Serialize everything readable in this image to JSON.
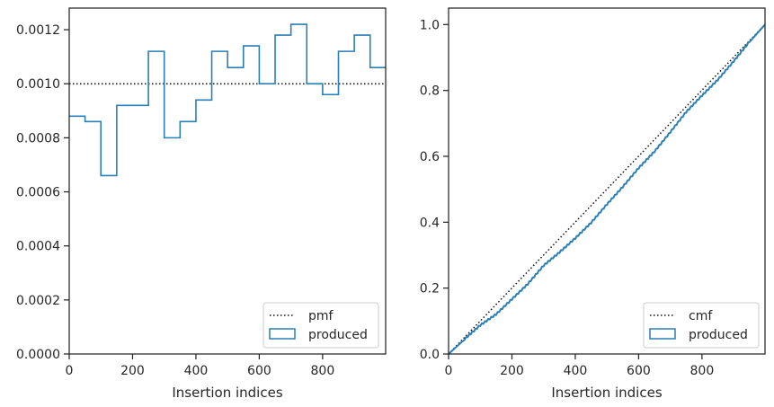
{
  "colors": {
    "produced": "#2a7fb5",
    "reference": "#111111",
    "spine": "#262626",
    "legend_border": "#cccccc"
  },
  "chart_data": [
    {
      "type": "step",
      "xlabel": "Insertion indices",
      "ylabel": "",
      "xlim": [
        0,
        999
      ],
      "ylim": [
        0,
        0.00128
      ],
      "x_ticks": [
        0,
        200,
        400,
        600,
        800
      ],
      "x_tick_labels": [
        "0",
        "200",
        "400",
        "600",
        "800"
      ],
      "y_ticks": [
        0,
        0.0002,
        0.0004,
        0.0006,
        0.0008,
        0.001,
        0.0012
      ],
      "y_tick_labels": [
        "0.0000",
        "0.0002",
        "0.0004",
        "0.0006",
        "0.0008",
        "0.0010",
        "0.0012"
      ],
      "grid": false,
      "legend_position": "lower-right",
      "legend": [
        {
          "label": "pmf",
          "style": "dotted"
        },
        {
          "label": "produced",
          "style": "box"
        }
      ],
      "reference_line": {
        "label": "pmf",
        "y": 0.001
      },
      "series": [
        {
          "name": "produced",
          "bin_edges": [
            0,
            50,
            100,
            150,
            200,
            250,
            300,
            350,
            400,
            450,
            500,
            550,
            600,
            650,
            700,
            750,
            800,
            850,
            900,
            950,
            999
          ],
          "values": [
            0.00088,
            0.00086,
            0.00066,
            0.00092,
            0.00092,
            0.00112,
            0.0008,
            0.00086,
            0.00094,
            0.00112,
            0.00106,
            0.00114,
            0.001,
            0.00118,
            0.00122,
            0.001,
            0.00096,
            0.00112,
            0.00118,
            0.00106
          ]
        }
      ]
    },
    {
      "type": "line",
      "xlabel": "Insertion indices",
      "ylabel": "",
      "xlim": [
        0,
        999
      ],
      "ylim": [
        0,
        1.05
      ],
      "x_ticks": [
        0,
        200,
        400,
        600,
        800
      ],
      "x_tick_labels": [
        "0",
        "200",
        "400",
        "600",
        "800"
      ],
      "y_ticks": [
        0,
        0.2,
        0.4,
        0.6,
        0.8,
        1.0
      ],
      "y_tick_labels": [
        "0.0",
        "0.2",
        "0.4",
        "0.6",
        "0.8",
        "1.0"
      ],
      "grid": false,
      "legend_position": "lower-right",
      "legend": [
        {
          "label": "cmf",
          "style": "dotted"
        },
        {
          "label": "produced",
          "style": "box"
        }
      ],
      "reference_line": {
        "label": "cmf",
        "points": [
          [
            0,
            0
          ],
          [
            999,
            1.0
          ]
        ]
      },
      "series": [
        {
          "name": "produced",
          "x": [
            0,
            50,
            100,
            150,
            200,
            250,
            300,
            350,
            400,
            450,
            500,
            550,
            600,
            650,
            700,
            750,
            800,
            850,
            900,
            950,
            999
          ],
          "y": [
            0,
            0.044,
            0.087,
            0.12,
            0.166,
            0.212,
            0.268,
            0.308,
            0.351,
            0.398,
            0.454,
            0.507,
            0.564,
            0.614,
            0.673,
            0.734,
            0.784,
            0.832,
            0.888,
            0.947,
            1.0
          ]
        }
      ]
    }
  ]
}
